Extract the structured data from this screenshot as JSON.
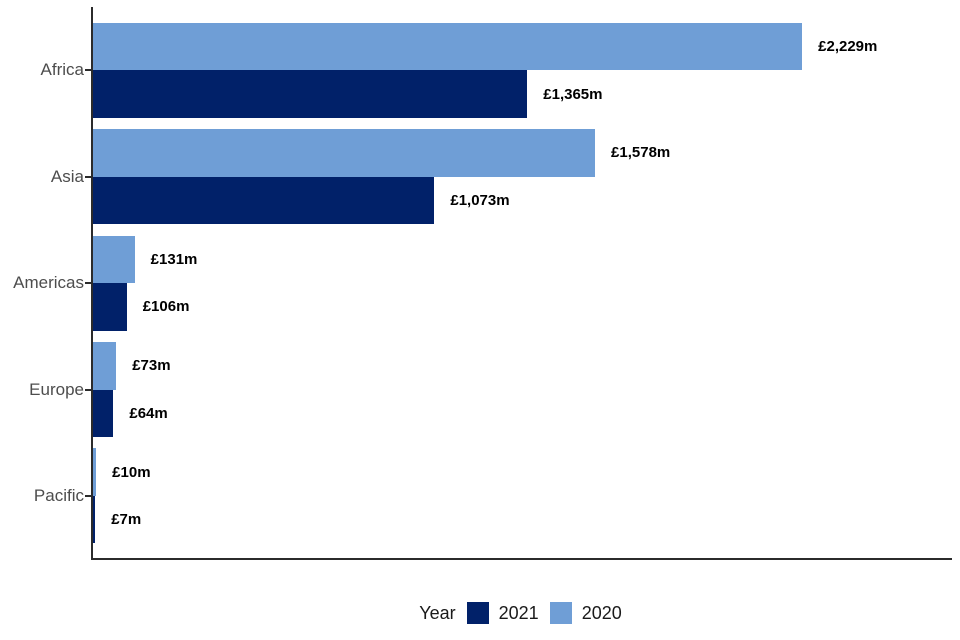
{
  "chart_data": {
    "type": "bar",
    "orientation": "horizontal",
    "title": "",
    "xlabel": "",
    "ylabel": "",
    "categories": [
      "Africa",
      "Asia",
      "Americas",
      "Europe",
      "Pacific"
    ],
    "series": [
      {
        "name": "2021",
        "color": "#012169",
        "values": [
          1365,
          1073,
          106,
          64,
          7
        ],
        "labels": [
          "£1,365m",
          "£1,073m",
          "£106m",
          "£64m",
          "£7m"
        ]
      },
      {
        "name": "2020",
        "color": "#6F9ED6",
        "values": [
          2229,
          1578,
          131,
          73,
          10
        ],
        "labels": [
          "£2,229m",
          "£1,578m",
          "£131m",
          "£73m",
          "£10m"
        ]
      }
    ],
    "bar_row_order": [
      "2020",
      "2021"
    ],
    "xlim": [
      0,
      2700
    ],
    "grid": false,
    "legend": {
      "title": "Year",
      "position": "bottom",
      "items": [
        "2021",
        "2020"
      ]
    },
    "colors": {
      "axis_line": "#2b2b2b",
      "category_label": "#4d4d4d",
      "value_label": "#000000",
      "background": "#ffffff"
    }
  }
}
